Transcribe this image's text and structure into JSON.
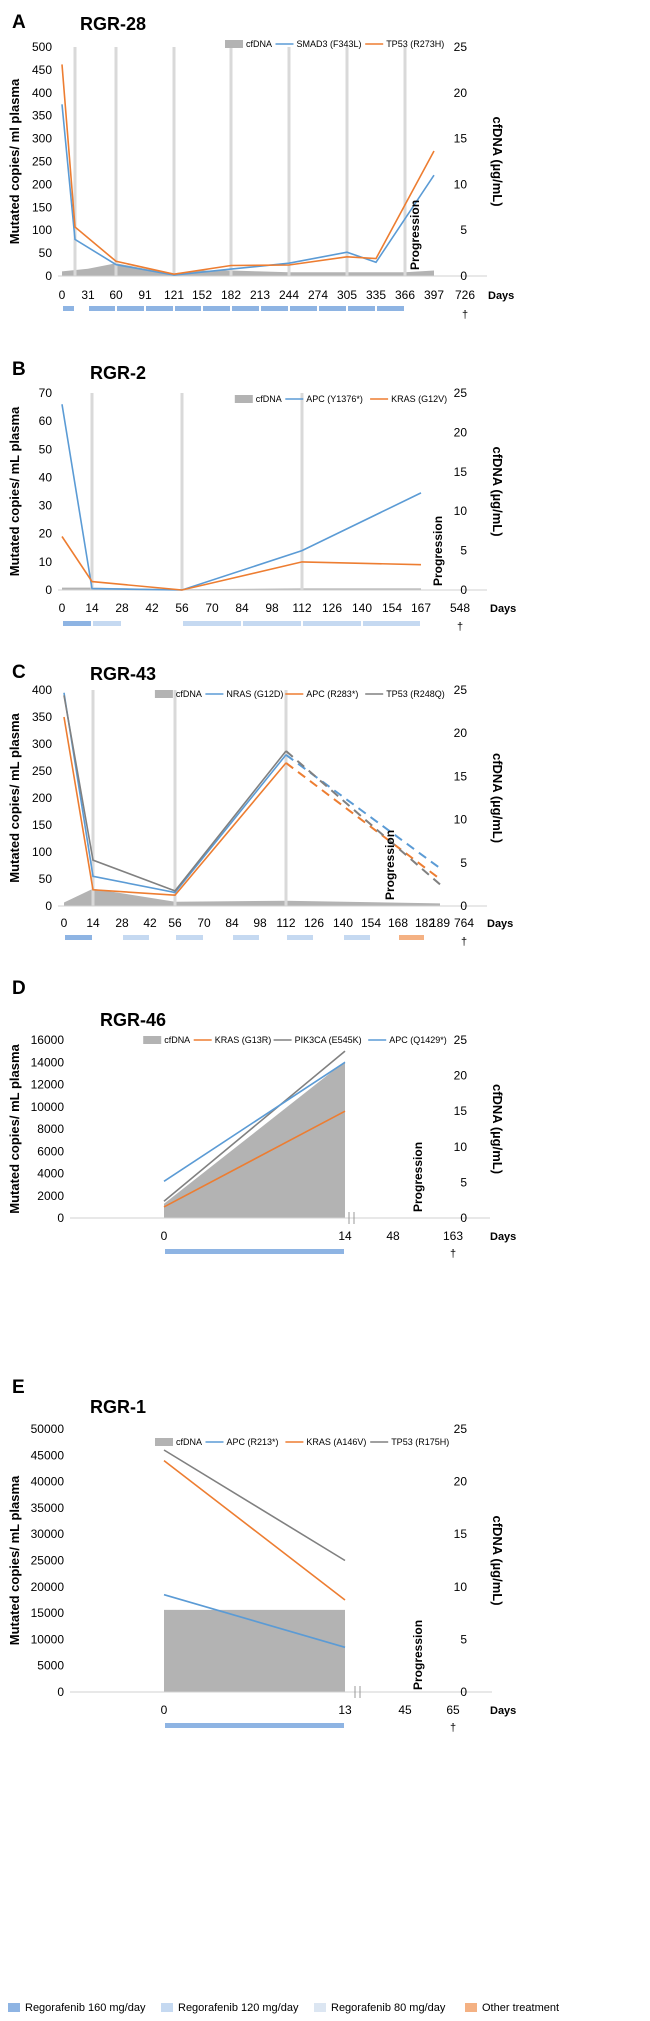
{
  "colors": {
    "cfdna_fill": "#b3b3b3",
    "blue": "#5b9bd5",
    "orange": "#ed7d31",
    "gray": "#808080",
    "vline": "#d9d9d9",
    "reg160": "#8eb4e3",
    "reg120": "#c5d9f1",
    "reg80": "#dce6f2",
    "other": "#f4b183"
  },
  "axis_common": {
    "y_left_label": "Mutated copies/ mL plasma",
    "y_right_label": "cfDNA (µg/mL)",
    "days_label": "Days",
    "progression_label": "Progression",
    "death_mark": "†"
  },
  "footer_legend": [
    {
      "label": "Regorafenib 160 mg/day",
      "color_key": "reg160"
    },
    {
      "label": "Regorafenib 120 mg/day",
      "color_key": "reg120"
    },
    {
      "label": "Regorafenib 80 mg/day",
      "color_key": "reg80"
    },
    {
      "label": "Other treatment",
      "color_key": "other"
    }
  ],
  "chart_data": [
    {
      "panel": "A",
      "title": "RGR-28",
      "type": "line",
      "y_left_label": "Mutated copies/ ml plasma",
      "ylim": [
        0,
        500
      ],
      "y_ticks": [
        0,
        50,
        100,
        150,
        200,
        250,
        300,
        350,
        400,
        450,
        500
      ],
      "y2lim": [
        0,
        25
      ],
      "y2_ticks": [
        0,
        5,
        10,
        15,
        20,
        25
      ],
      "x_ticks": [
        "0",
        "31",
        "60",
        "91",
        "121",
        "152",
        "182",
        "213",
        "244",
        "274",
        "305",
        "335",
        "366",
        "397",
        "726"
      ],
      "legend": [
        "cfDNA",
        "SMAD3 (F343L)",
        "TP53 (R273H)"
      ],
      "vlines": [
        "6",
        "60",
        "121",
        "182",
        "244",
        "305",
        "366"
      ],
      "cfdna": {
        "x": [
          "0",
          "31",
          "60",
          "91",
          "121",
          "152",
          "182",
          "213",
          "244",
          "274",
          "305",
          "335",
          "366",
          "397"
        ],
        "values": [
          0.5,
          0.8,
          1.4,
          0.8,
          0.3,
          0.6,
          0.6,
          0.5,
          0.4,
          0.4,
          0.4,
          0.4,
          0.4,
          0.6
        ]
      },
      "series": [
        {
          "name": "SMAD3 (F343L)",
          "color_key": "blue",
          "x": [
            "0",
            "6",
            "60",
            "121",
            "182",
            "244",
            "305",
            "335",
            "397"
          ],
          "values": [
            375,
            80,
            25,
            2,
            15,
            28,
            52,
            30,
            220
          ]
        },
        {
          "name": "TP53 (R273H)",
          "color_key": "orange",
          "x": [
            "0",
            "6",
            "60",
            "121",
            "182",
            "244",
            "305",
            "335",
            "397"
          ],
          "values": [
            462,
            107,
            32,
            4,
            23,
            24,
            42,
            38,
            273
          ]
        }
      ],
      "progression_at": "366",
      "death_at": "726",
      "treatment_bars": [
        {
          "from": "0",
          "to": "6",
          "color_key": "reg160"
        },
        {
          "from": "31",
          "to": "60",
          "color_key": "reg160"
        },
        {
          "from": "60",
          "to": "91",
          "color_key": "reg160"
        },
        {
          "from": "91",
          "to": "121",
          "color_key": "reg160"
        },
        {
          "from": "121",
          "to": "152",
          "color_key": "reg160"
        },
        {
          "from": "152",
          "to": "182",
          "color_key": "reg160"
        },
        {
          "from": "182",
          "to": "213",
          "color_key": "reg160"
        },
        {
          "from": "213",
          "to": "244",
          "color_key": "reg160"
        },
        {
          "from": "244",
          "to": "274",
          "color_key": "reg160"
        },
        {
          "from": "274",
          "to": "305",
          "color_key": "reg160"
        },
        {
          "from": "305",
          "to": "335",
          "color_key": "reg160"
        },
        {
          "from": "335",
          "to": "366",
          "color_key": "reg160"
        }
      ]
    },
    {
      "panel": "B",
      "title": "RGR-2",
      "type": "line",
      "y_left_label": "Mutated copies/ mL plasma",
      "ylim": [
        0,
        70
      ],
      "y_ticks": [
        0,
        10,
        20,
        30,
        40,
        50,
        60,
        70
      ],
      "y2lim": [
        0,
        25
      ],
      "y2_ticks": [
        0,
        5,
        10,
        15,
        20,
        25
      ],
      "x_ticks": [
        "0",
        "14",
        "28",
        "42",
        "56",
        "70",
        "84",
        "98",
        "112",
        "126",
        "140",
        "154",
        "167",
        "548"
      ],
      "legend": [
        "cfDNA",
        "APC (Y1376*)",
        "KRAS (G12V)"
      ],
      "vlines": [
        "14",
        "56",
        "112"
      ],
      "cfdna": {
        "x": [
          "0",
          "14",
          "56",
          "112",
          "167"
        ],
        "values": [
          0.3,
          0.3,
          0.1,
          0.2,
          0.2
        ]
      },
      "series": [
        {
          "name": "APC (Y1376*)",
          "color_key": "blue",
          "x": [
            "0",
            "14",
            "56",
            "112",
            "167"
          ],
          "values": [
            66,
            0.5,
            0,
            14,
            34.5
          ]
        },
        {
          "name": "KRAS (G12V)",
          "color_key": "orange",
          "x": [
            "0",
            "14",
            "56",
            "112",
            "167"
          ],
          "values": [
            19,
            3,
            0,
            10,
            9
          ]
        }
      ],
      "progression_at": "167",
      "death_at": "548",
      "treatment_bars": [
        {
          "from": "0",
          "to": "14",
          "color_key": "reg160"
        },
        {
          "from": "14",
          "to": "28",
          "color_key": "reg120"
        },
        {
          "from": "56",
          "to": "84",
          "color_key": "reg120"
        },
        {
          "from": "84",
          "to": "112",
          "color_key": "reg120"
        },
        {
          "from": "112",
          "to": "140",
          "color_key": "reg120"
        },
        {
          "from": "140",
          "to": "167",
          "color_key": "reg120"
        }
      ]
    },
    {
      "panel": "C",
      "title": "RGR-43",
      "type": "line",
      "y_left_label": "Mutated copies/ mL plasma",
      "ylim": [
        0,
        400
      ],
      "y_ticks": [
        0,
        50,
        100,
        150,
        200,
        250,
        300,
        350,
        400
      ],
      "y2lim": [
        0,
        25
      ],
      "y2_ticks": [
        0,
        5,
        10,
        15,
        20,
        25
      ],
      "x_ticks": [
        "0",
        "14",
        "28",
        "42",
        "56",
        "70",
        "84",
        "98",
        "112",
        "126",
        "140",
        "154",
        "168",
        "182",
        "189",
        "764"
      ],
      "legend": [
        "cfDNA",
        "NRAS (G12D)",
        "APC (R283*)",
        "TP53 (R248Q)"
      ],
      "vlines": [
        "14",
        "56",
        "112"
      ],
      "cfdna": {
        "x": [
          "0",
          "14",
          "56",
          "112",
          "189"
        ],
        "values": [
          0.4,
          2.0,
          0.5,
          0.6,
          0.3
        ]
      },
      "series": [
        {
          "name": "NRAS (G12D)",
          "color_key": "blue",
          "x": [
            "0",
            "14",
            "56",
            "112"
          ],
          "values": [
            395,
            55,
            25,
            280
          ],
          "dashed_to": {
            "x": "189",
            "value": 70
          }
        },
        {
          "name": "APC (R283*)",
          "color_key": "orange",
          "x": [
            "0",
            "14",
            "56",
            "112"
          ],
          "values": [
            350,
            30,
            20,
            265
          ],
          "dashed_to": {
            "x": "189",
            "value": 50
          }
        },
        {
          "name": "TP53 (R248Q)",
          "color_key": "gray",
          "x": [
            "0",
            "14",
            "56",
            "112"
          ],
          "values": [
            390,
            85,
            28,
            287
          ],
          "dashed_to": {
            "x": "189",
            "value": 40
          }
        }
      ],
      "progression_at": "182",
      "death_at": "764",
      "treatment_bars": [
        {
          "from": "0",
          "to": "14",
          "color_key": "reg160"
        },
        {
          "from": "28",
          "to": "42",
          "color_key": "reg120"
        },
        {
          "from": "56",
          "to": "70",
          "color_key": "reg120"
        },
        {
          "from": "84",
          "to": "98",
          "color_key": "reg120"
        },
        {
          "from": "112",
          "to": "126",
          "color_key": "reg120"
        },
        {
          "from": "140",
          "to": "154",
          "color_key": "reg120"
        },
        {
          "from": "168",
          "to": "182",
          "color_key": "other"
        }
      ]
    },
    {
      "panel": "D",
      "title": "RGR-46",
      "type": "line",
      "y_left_label": "Mutated copies/ mL plasma",
      "ylim": [
        0,
        16000
      ],
      "y_ticks": [
        0,
        2000,
        4000,
        6000,
        8000,
        10000,
        12000,
        14000,
        16000
      ],
      "y2lim": [
        0,
        25
      ],
      "y2_ticks": [
        0,
        5,
        10,
        15,
        20,
        25
      ],
      "x_ticks": [
        "0",
        "14",
        "48",
        "163"
      ],
      "legend": [
        "cfDNA",
        "KRAS (G13R)",
        "PIK3CA (E545K)",
        "APC (Q1429*)"
      ],
      "vlines": [],
      "cfdna": {
        "x": [
          "0",
          "14"
        ],
        "values": [
          2.0,
          22.0
        ]
      },
      "series": [
        {
          "name": "KRAS (G13R)",
          "color_key": "orange",
          "x": [
            "0",
            "14"
          ],
          "values": [
            1000,
            9600
          ]
        },
        {
          "name": "PIK3CA (E545K)",
          "color_key": "gray",
          "x": [
            "0",
            "14"
          ],
          "values": [
            1500,
            15000
          ]
        },
        {
          "name": "APC (Q1429*)",
          "color_key": "blue",
          "x": [
            "0",
            "14"
          ],
          "values": [
            3300,
            14000
          ]
        }
      ],
      "progression_at": "48",
      "death_at": "163",
      "treatment_bars": [
        {
          "from": "0",
          "to": "14",
          "color_key": "reg160"
        }
      ]
    },
    {
      "panel": "E",
      "title": "RGR-1",
      "type": "line",
      "y_left_label": "Mutated copies/ mL plasma",
      "ylim": [
        0,
        50000
      ],
      "y_ticks": [
        0,
        5000,
        10000,
        15000,
        20000,
        25000,
        30000,
        35000,
        40000,
        45000,
        50000
      ],
      "y2lim": [
        0,
        25
      ],
      "y2_ticks": [
        0,
        5,
        10,
        15,
        20,
        25
      ],
      "x_ticks": [
        "0",
        "13",
        "45",
        "65"
      ],
      "legend": [
        "cfDNA",
        "APC (R213*)",
        "KRAS (A146V)",
        "TP53 (R175H)"
      ],
      "vlines": [],
      "cfdna": {
        "x": [
          "0",
          "13"
        ],
        "values": [
          7.8,
          7.8
        ]
      },
      "series": [
        {
          "name": "APC (R213*)",
          "color_key": "blue",
          "x": [
            "0",
            "13"
          ],
          "values": [
            18500,
            8500
          ]
        },
        {
          "name": "KRAS (A146V)",
          "color_key": "orange",
          "x": [
            "0",
            "13"
          ],
          "values": [
            44000,
            17500
          ]
        },
        {
          "name": "TP53 (R175H)",
          "color_key": "gray",
          "x": [
            "0",
            "13"
          ],
          "values": [
            46000,
            25000
          ]
        }
      ],
      "progression_at": "45",
      "death_at": "65",
      "treatment_bars": [
        {
          "from": "0",
          "to": "13",
          "color_key": "reg160"
        }
      ]
    }
  ]
}
